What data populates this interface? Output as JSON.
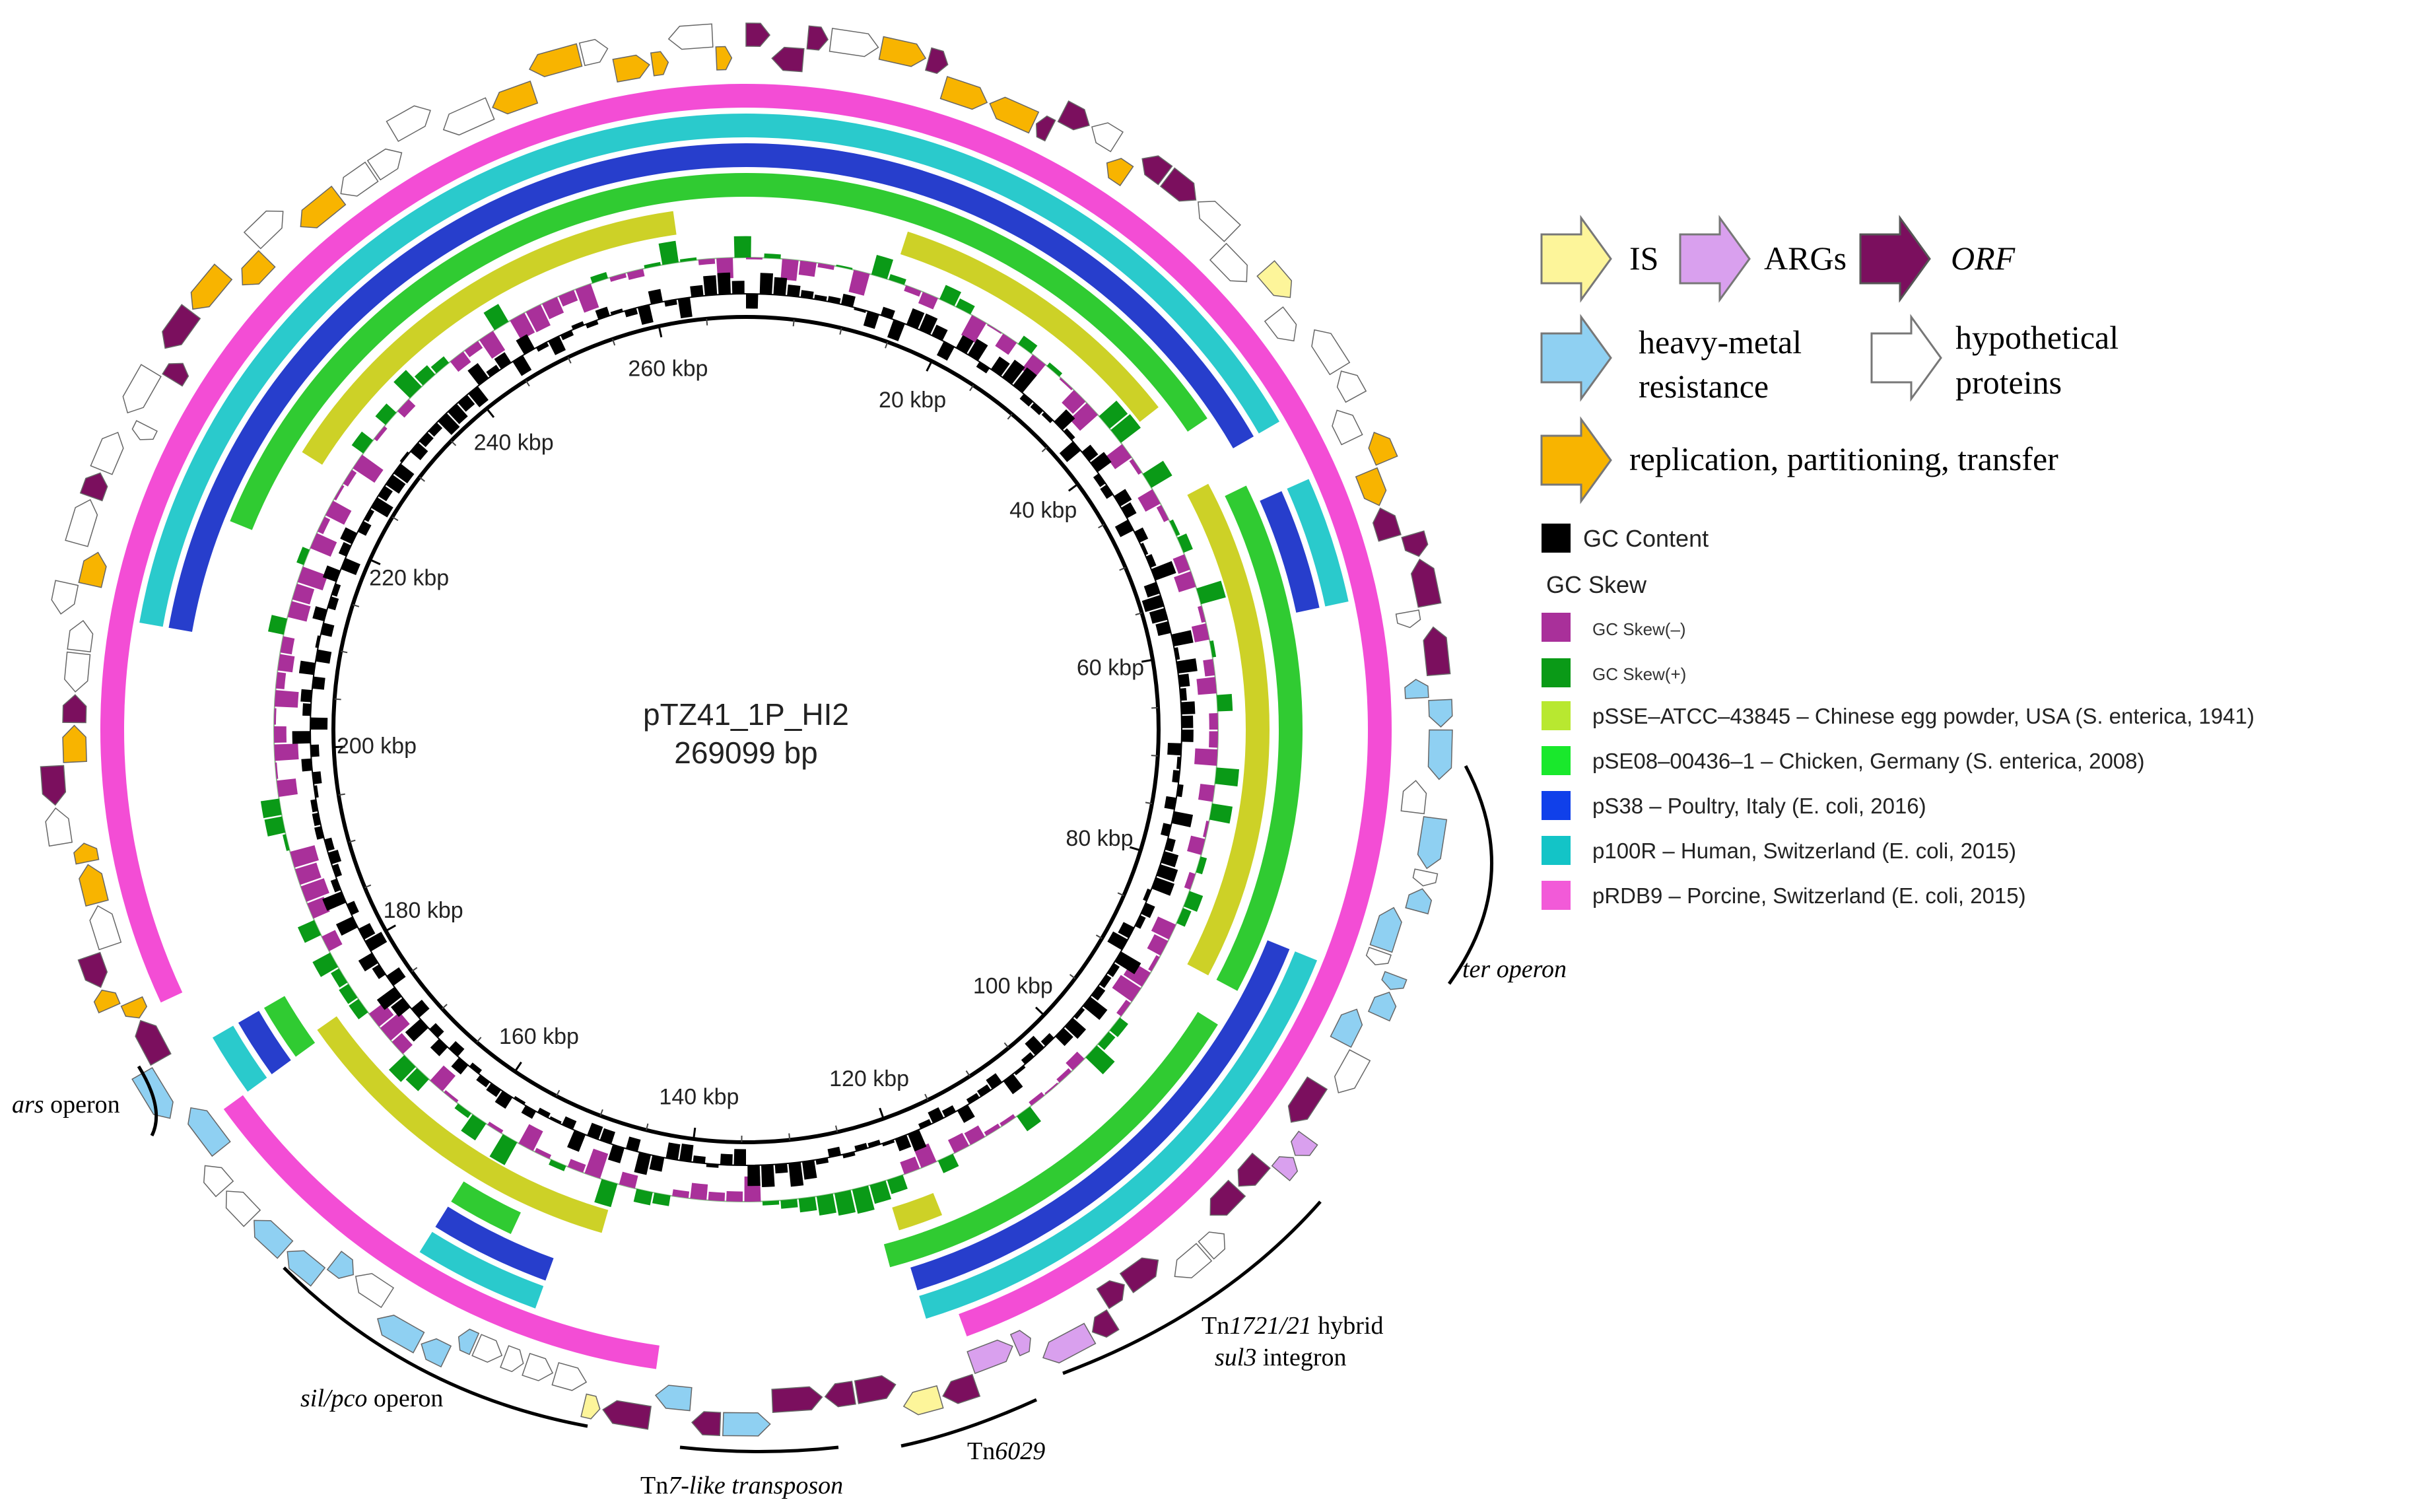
{
  "plasmid": {
    "name": "pTZ41_1P_HI2",
    "size_label": "269099 bp",
    "length_bp": 269099
  },
  "ticks": [
    "20 kbp",
    "40 kbp",
    "60 kbp",
    "80 kbp",
    "100 kbp",
    "120 kbp",
    "140 kbp",
    "160 kbp",
    "180 kbp",
    "200 kbp",
    "220 kbp",
    "240 kbp",
    "260 kbp"
  ],
  "tick_values_kbp": [
    20,
    40,
    60,
    80,
    100,
    120,
    140,
    160,
    180,
    200,
    220,
    240,
    260
  ],
  "legend_top": {
    "is": "IS",
    "args": "ARGs",
    "orf": "ORF",
    "heavy_metal_1": "heavy-metal",
    "heavy_metal_2": "resistance",
    "hypothetical_1": "hypothetical",
    "hypothetical_2": "proteins",
    "replication": "replication, partitioning, transfer"
  },
  "legend_rings": {
    "gc_content": "GC Content",
    "gc_skew": "GC Skew",
    "gc_skew_neg": "GC Skew(–)",
    "gc_skew_pos": "GC Skew(+)",
    "ring1": "pSSE–ATCC–43845 – Chinese egg powder, USA (S. enterica, 1941)",
    "ring2": "pSE08–00436–1 – Chicken, Germany (S. enterica, 2008)",
    "ring3": "pS38 – Poultry, Italy (E. coli, 2016)",
    "ring4": "p100R – Human, Switzerland (E. coli, 2015)",
    "ring5": "pRDB9 – Porcine, Switzerland (E. coli, 2015)"
  },
  "annotations": {
    "ter_operon": "ter operon",
    "ars_italic": "ars",
    "ars_rest": " operon",
    "tn1721_a": "Tn",
    "tn1721_b": "1721/21",
    "tn1721_c": " hybrid",
    "sul3_a": "sul3",
    "sul3_b": " integron",
    "tn6029_a": "Tn",
    "tn6029_b": "6029",
    "tn7_a": "Tn",
    "tn7_b": "7-like transposon",
    "silpco_a": "sil/pco",
    "silpco_b": " operon"
  },
  "colors": {
    "is": "#fdf59a",
    "args": "#d9a0ee",
    "orf": "#7b0f5e",
    "heavy_metal": "#8fd0f2",
    "hypothetical": "#ffffff",
    "replication": "#f8b400",
    "gc_content": "#000000",
    "gc_skew_neg": "#a9309a",
    "gc_skew_pos": "#0a9a17",
    "ring1": "#c8cc10",
    "ring2": "#19c51c",
    "ring3": "#1029c6",
    "ring4": "#13c4c7",
    "ring5": "#f23ad0"
  }
}
